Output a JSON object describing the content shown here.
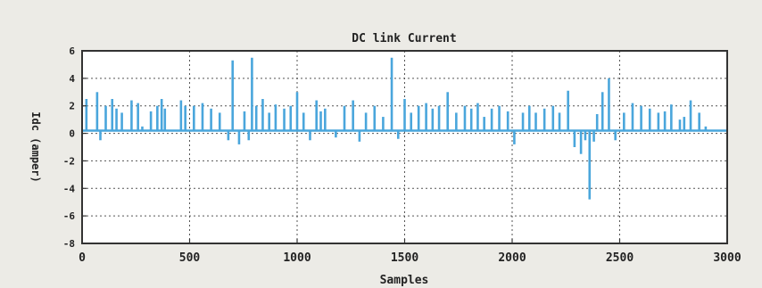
{
  "chart_data": {
    "type": "line",
    "title": "DC link Current",
    "xlabel": "Samples",
    "ylabel": "Idc (amper)",
    "xlim": [
      0,
      3000
    ],
    "ylim": [
      -8,
      6
    ],
    "xticks": [
      0,
      500,
      1000,
      1500,
      2000,
      2500,
      3000
    ],
    "yticks": [
      6,
      4,
      2,
      0,
      -2,
      -4,
      -6,
      -8
    ],
    "ytick_labels": [
      "6",
      "4",
      "2",
      "0",
      "-2",
      "-4",
      "-6",
      "-8"
    ],
    "grid": true,
    "legend": "none",
    "series": [
      {
        "color": "#4aa6dc",
        "baseline": 0.2,
        "x": [
          20,
          70,
          85,
          110,
          140,
          160,
          185,
          230,
          260,
          280,
          320,
          350,
          370,
          385,
          460,
          480,
          520,
          560,
          600,
          640,
          680,
          700,
          730,
          755,
          775,
          790,
          810,
          840,
          870,
          900,
          940,
          970,
          1000,
          1030,
          1060,
          1090,
          1110,
          1130,
          1180,
          1220,
          1260,
          1290,
          1320,
          1360,
          1400,
          1440,
          1470,
          1500,
          1530,
          1565,
          1600,
          1630,
          1660,
          1700,
          1740,
          1780,
          1810,
          1840,
          1870,
          1905,
          1940,
          1980,
          2010,
          2050,
          2080,
          2110,
          2150,
          2190,
          2220,
          2260,
          2290,
          2320,
          2340,
          2360,
          2380,
          2395,
          2420,
          2450,
          2480,
          2520,
          2560,
          2600,
          2640,
          2680,
          2710,
          2740,
          2780,
          2800,
          2830,
          2870,
          2900
        ],
        "y": [
          2.5,
          3.0,
          -0.5,
          2.0,
          2.5,
          1.8,
          1.5,
          2.4,
          2.2,
          0.5,
          1.6,
          2.0,
          2.5,
          1.8,
          2.4,
          2.0,
          2.0,
          2.2,
          1.8,
          1.5,
          -0.5,
          5.3,
          -0.8,
          1.6,
          -0.5,
          5.5,
          2.0,
          2.5,
          1.5,
          2.1,
          1.8,
          2.0,
          3.0,
          1.5,
          -0.5,
          2.4,
          1.6,
          1.8,
          -0.3,
          2.0,
          2.4,
          -0.6,
          1.5,
          2.0,
          1.2,
          5.5,
          -0.4,
          2.5,
          1.5,
          2.0,
          2.2,
          1.8,
          2.0,
          3.0,
          1.5,
          2.0,
          1.8,
          2.2,
          1.2,
          1.8,
          2.0,
          1.6,
          -0.8,
          1.5,
          2.0,
          1.5,
          1.8,
          2.0,
          1.5,
          3.1,
          -1.0,
          -1.5,
          -0.5,
          -4.8,
          -0.6,
          1.4,
          3.0,
          4.0,
          -0.5,
          1.5,
          2.2,
          2.0,
          1.8,
          1.5,
          1.6,
          2.1,
          1.0,
          1.2,
          2.4,
          1.5,
          0.5
        ]
      }
    ]
  }
}
